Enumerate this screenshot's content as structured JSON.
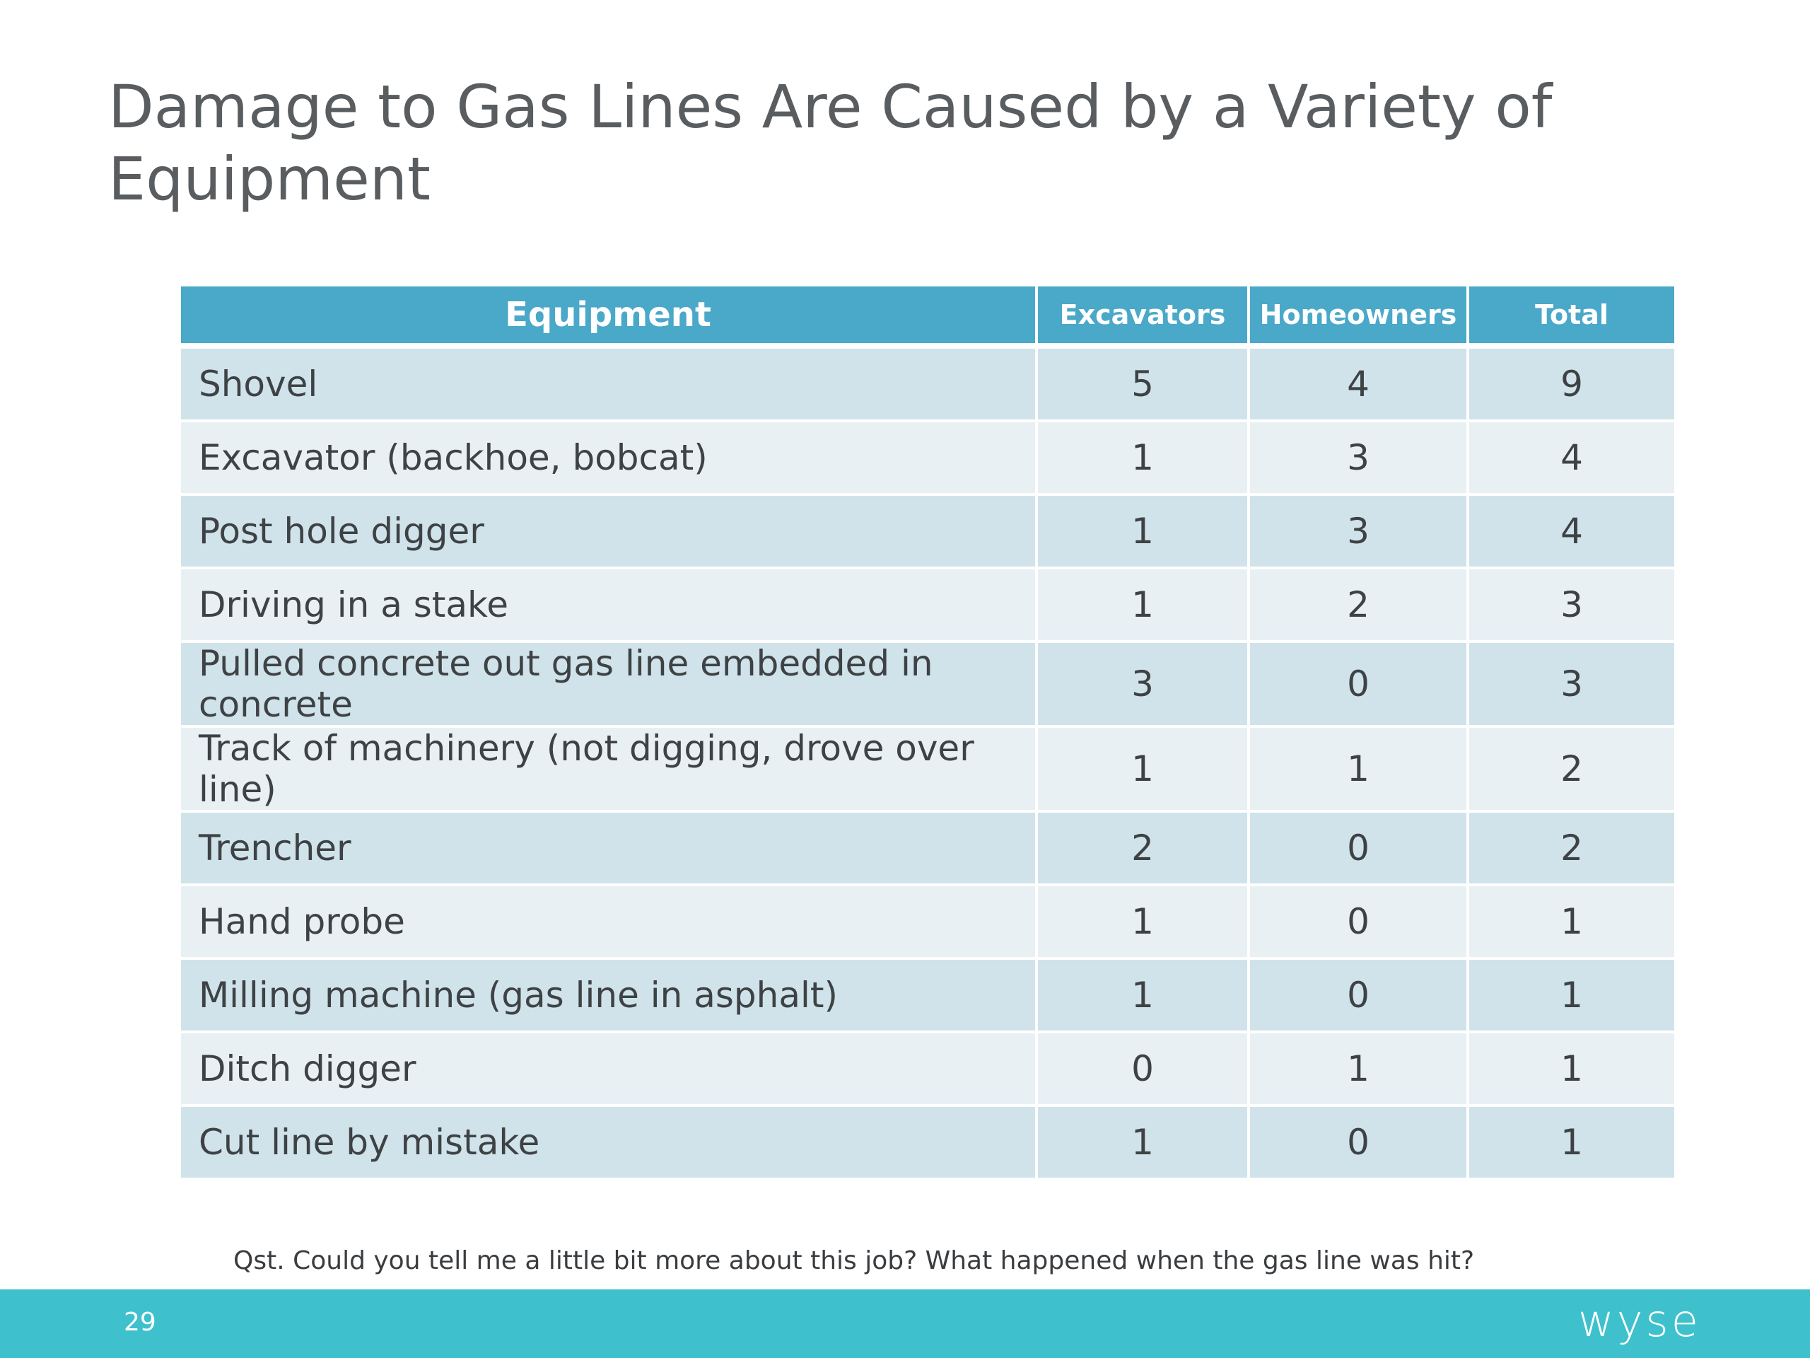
{
  "slide": {
    "title": "Damage to Gas Lines Are Caused by a Variety of Equipment",
    "footnote": "Qst. Could you tell me a little bit more about this job? What happened when the gas line was hit?",
    "page_number": "29",
    "logo_text": "wyse"
  },
  "table": {
    "headers": [
      "Equipment",
      "Excavators",
      "Homeowners",
      "Total"
    ],
    "rows": [
      [
        "Shovel",
        "5",
        "4",
        "9"
      ],
      [
        "Excavator (backhoe, bobcat)",
        "1",
        "3",
        "4"
      ],
      [
        "Post hole digger",
        "1",
        "3",
        "4"
      ],
      [
        "Driving in a stake",
        "1",
        "2",
        "3"
      ],
      [
        "Pulled concrete out gas line embedded in concrete",
        "3",
        "0",
        "3"
      ],
      [
        "Track of machinery (not digging, drove over line)",
        "1",
        "1",
        "2"
      ],
      [
        "Trencher",
        "2",
        "0",
        "2"
      ],
      [
        "Hand probe",
        "1",
        "0",
        "1"
      ],
      [
        "Milling machine (gas line in asphalt)",
        "1",
        "0",
        "1"
      ],
      [
        "Ditch digger",
        "0",
        "1",
        "1"
      ],
      [
        "Cut line by mistake",
        "1",
        "0",
        "1"
      ]
    ]
  },
  "colors": {
    "header_bg": "#4aa8c9",
    "row_dark": "#d0e3ea",
    "row_light": "#e8f0f4",
    "footer_bg": "#3ec1cc",
    "title_text": "#5a5d60"
  }
}
